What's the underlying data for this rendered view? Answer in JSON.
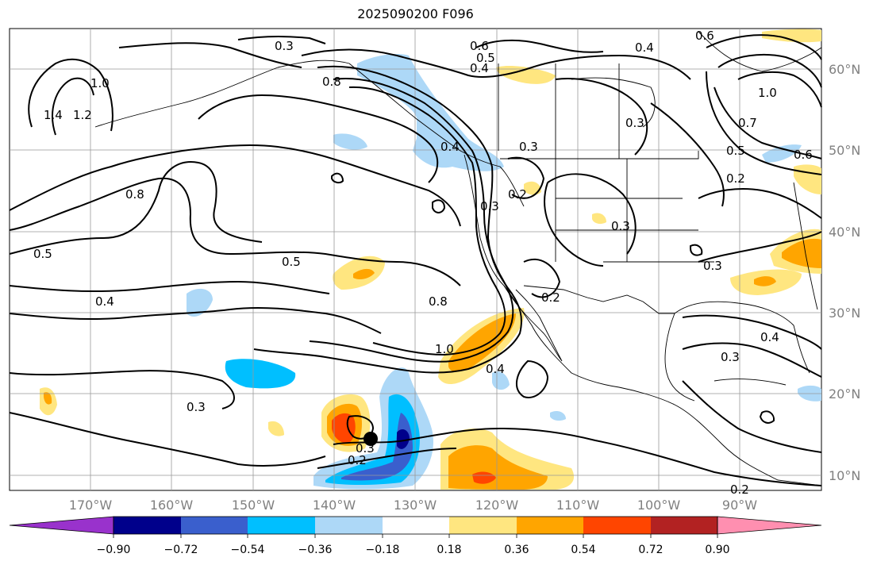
{
  "title": "2025090200 F096",
  "map": {
    "lat_labels": [
      "60°N",
      "50°N",
      "40°N",
      "30°N",
      "20°N",
      "10°N"
    ],
    "lon_labels": [
      "170°W",
      "160°W",
      "150°W",
      "140°W",
      "130°W",
      "120°W",
      "110°W",
      "100°W",
      "90°W"
    ],
    "contour_labels": [
      "0.3",
      "0.6",
      "0.5",
      "0.4",
      "0.8",
      "1.0",
      "1.4",
      "1.2",
      "0.8",
      "0.5",
      "0.5",
      "0.4",
      "0.3",
      "0.8",
      "1.0",
      "0.4",
      "0.2",
      "0.3",
      "0.3",
      "0.2",
      "0.3",
      "0.4",
      "0.2",
      "0.3",
      "0.3",
      "0.6",
      "1.0",
      "0.7",
      "0.5",
      "0.6",
      "0.3",
      "0.4",
      "0.3",
      "0.4",
      "0.2",
      "0.2"
    ],
    "storm_marker": "tropical-cyclone-center"
  },
  "colorbar": {
    "ticks": [
      "−0.90",
      "−0.72",
      "−0.54",
      "−0.36",
      "−0.18",
      "0.18",
      "0.36",
      "0.54",
      "0.72",
      "0.90"
    ],
    "colors": [
      "#9932cc",
      "#00008b",
      "#3a5fcd",
      "#00bfff",
      "#add8f7",
      "#ffffff",
      "#ffe680",
      "#ffa500",
      "#ff4500",
      "#b22222",
      "#ff8fb0"
    ]
  }
}
